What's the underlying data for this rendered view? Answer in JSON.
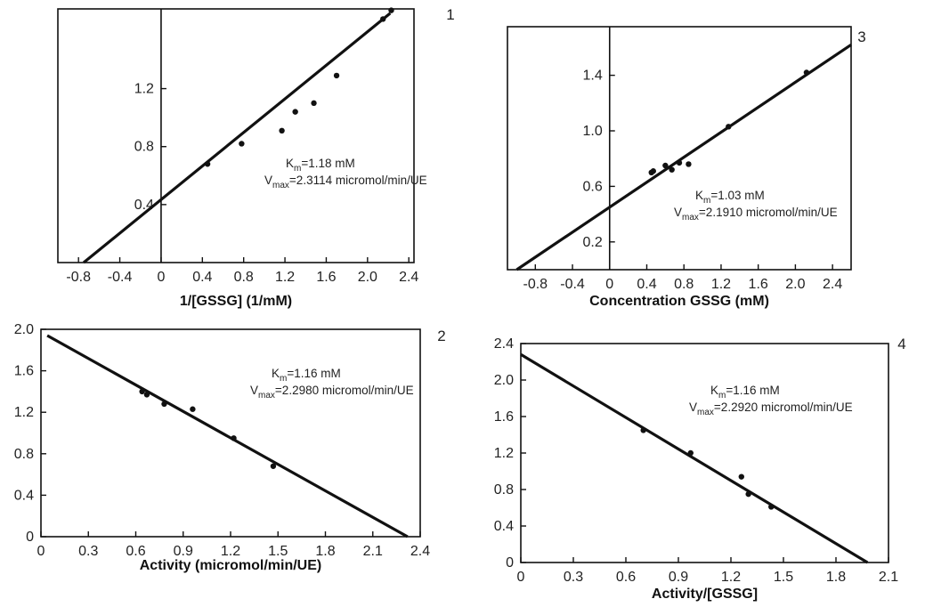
{
  "chart_data": [
    {
      "panel_label": "1",
      "type": "scatter",
      "xlabel": "1/[GSSG] (1/mM)",
      "ylabel": "",
      "xlim": [
        -1.0,
        2.45
      ],
      "ylim": [
        0.0,
        1.75
      ],
      "xticks": [
        "-0.8",
        "-0.4",
        "0",
        "0.4",
        "0.8",
        "1.2",
        "1.6",
        "2.0",
        "2.4"
      ],
      "xtick_values": [
        -0.8,
        -0.4,
        0,
        0.4,
        0.8,
        1.2,
        1.6,
        2.0,
        2.4
      ],
      "yticks": [
        "0.4",
        "0.8",
        "1.2"
      ],
      "ytick_values": [
        0.4,
        0.8,
        1.2
      ],
      "y_axis_at_zero": true,
      "points": [
        [
          0.45,
          0.68
        ],
        [
          0.78,
          0.82
        ],
        [
          1.17,
          0.91
        ],
        [
          1.3,
          1.04
        ],
        [
          1.48,
          1.1
        ],
        [
          1.7,
          1.29
        ],
        [
          2.15,
          1.68
        ],
        [
          2.23,
          1.74
        ]
      ],
      "fit_line": [
        [
          -0.75,
          0.0
        ],
        [
          2.22,
          1.72
        ]
      ],
      "annotation": {
        "km_label": "K",
        "km_sub": "m",
        "km_value": "=1.18 mM",
        "vmax_label": "V",
        "vmax_sub": "max",
        "vmax_value": "=2.3114 micromol/min/UE"
      }
    },
    {
      "panel_label": "3",
      "type": "scatter",
      "xlabel": "Concentration GSSG (mM)",
      "ylabel": "",
      "xlim": [
        -1.1,
        2.6
      ],
      "ylim": [
        0.0,
        1.75
      ],
      "xticks": [
        "-0.8",
        "-0.4",
        "0",
        "0.4",
        "0.8",
        "1.2",
        "1.6",
        "2.0",
        "2.4"
      ],
      "xtick_values": [
        -0.8,
        -0.4,
        0,
        0.4,
        0.8,
        1.2,
        1.6,
        2.0,
        2.4
      ],
      "yticks": [
        "0.2",
        "0.6",
        "1.0",
        "1.4"
      ],
      "ytick_values": [
        0.2,
        0.6,
        1.0,
        1.4
      ],
      "y_axis_at_zero": true,
      "points": [
        [
          0.45,
          0.7
        ],
        [
          0.47,
          0.71
        ],
        [
          0.6,
          0.75
        ],
        [
          0.67,
          0.72
        ],
        [
          0.75,
          0.77
        ],
        [
          0.85,
          0.76
        ],
        [
          1.28,
          1.03
        ],
        [
          2.12,
          1.42
        ]
      ],
      "fit_line": [
        [
          -1.0,
          0.0
        ],
        [
          2.6,
          1.62
        ]
      ],
      "annotation": {
        "km_label": "K",
        "km_sub": "m",
        "km_value": "=1.03 mM",
        "vmax_label": "V",
        "vmax_sub": "max",
        "vmax_value": "=2.1910 micromol/min/UE"
      }
    },
    {
      "panel_label": "2",
      "type": "scatter",
      "xlabel": "Activity (micromol/min/UE)",
      "ylabel": "",
      "xlim": [
        0.0,
        2.4
      ],
      "ylim": [
        0.0,
        2.0
      ],
      "xticks": [
        "0",
        "0.3",
        "0.6",
        "0.9",
        "1.2",
        "1.5",
        "1.8",
        "2.1",
        "2.4"
      ],
      "xtick_values": [
        0,
        0.3,
        0.6,
        0.9,
        1.2,
        1.5,
        1.8,
        2.1,
        2.4
      ],
      "yticks": [
        "0",
        "0.4",
        "0.8",
        "1.2",
        "1.6",
        "2.0"
      ],
      "ytick_values": [
        0,
        0.4,
        0.8,
        1.2,
        1.6,
        2.0
      ],
      "y_axis_at_zero": false,
      "points": [
        [
          0.64,
          1.4
        ],
        [
          0.67,
          1.37
        ],
        [
          0.78,
          1.28
        ],
        [
          0.96,
          1.23
        ],
        [
          1.22,
          0.95
        ],
        [
          1.47,
          0.68
        ]
      ],
      "fit_line": [
        [
          0.04,
          1.94
        ],
        [
          2.32,
          0.0
        ]
      ],
      "annotation": {
        "km_label": "K",
        "km_sub": "m",
        "km_value": "=1.16 mM",
        "vmax_label": "V",
        "vmax_sub": "max",
        "vmax_value": "=2.2980 micromol/min/UE"
      }
    },
    {
      "panel_label": "4",
      "type": "scatter",
      "xlabel": "Activity/[GSSG]",
      "ylabel": "",
      "xlim": [
        0.0,
        2.1
      ],
      "ylim": [
        0.0,
        2.4
      ],
      "xticks": [
        "0",
        "0.3",
        "0.6",
        "0.9",
        "1.2",
        "1.5",
        "1.8",
        "2.1"
      ],
      "xtick_values": [
        0,
        0.3,
        0.6,
        0.9,
        1.2,
        1.5,
        1.8,
        2.1
      ],
      "yticks": [
        "0",
        "0.4",
        "0.8",
        "1.2",
        "1.6",
        "2.0",
        "2.4"
      ],
      "ytick_values": [
        0,
        0.4,
        0.8,
        1.2,
        1.6,
        2.0,
        2.4
      ],
      "y_axis_at_zero": false,
      "points": [
        [
          0.7,
          1.45
        ],
        [
          0.97,
          1.2
        ],
        [
          1.26,
          0.94
        ],
        [
          1.3,
          0.75
        ],
        [
          1.43,
          0.61
        ]
      ],
      "fit_line": [
        [
          0.0,
          2.28
        ],
        [
          1.98,
          0.0
        ]
      ],
      "annotation": {
        "km_label": "K",
        "km_sub": "m",
        "km_value": "=1.16 mM",
        "vmax_label": "V",
        "vmax_sub": "max",
        "vmax_value": "=2.2920 micromol/min/UE"
      }
    }
  ]
}
